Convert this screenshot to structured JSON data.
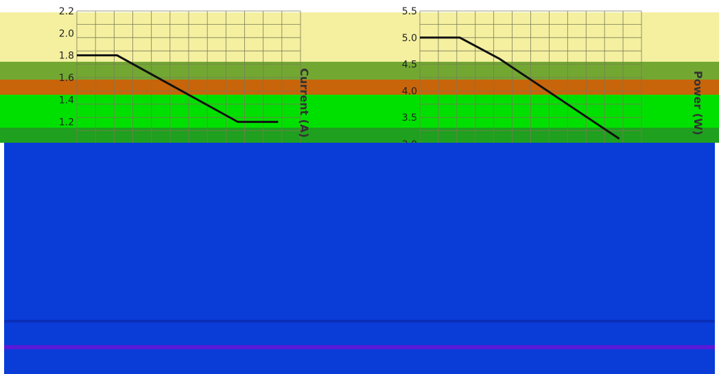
{
  "chart_data": [
    {
      "type": "line",
      "title": "",
      "ylabel": "Current (A)",
      "xlabel": "",
      "ylim": [
        1.0,
        2.2
      ],
      "y_ticks": [
        "2.2",
        "2.0",
        "1.8",
        "1.6",
        "1.4",
        "1.2"
      ],
      "grid": true,
      "series": [
        {
          "x": [
            0,
            1,
            2,
            3,
            4,
            5
          ],
          "values": [
            1.8,
            1.8,
            1.6,
            1.4,
            1.2,
            1.2
          ]
        }
      ]
    },
    {
      "type": "line",
      "title": "",
      "ylabel": "Power (W)",
      "xlabel": "",
      "ylim": [
        3.0,
        5.5
      ],
      "y_ticks": [
        "5.5",
        "5.0",
        "4.5",
        "4.0",
        "3.5",
        "3.0"
      ],
      "grid": true,
      "series": [
        {
          "x": [
            0,
            1,
            2,
            3,
            4,
            5
          ],
          "values": [
            5.0,
            5.0,
            4.6,
            4.1,
            3.6,
            3.1
          ]
        }
      ]
    }
  ],
  "colors": {
    "line": "#111111",
    "grid": "#7a7a55",
    "band_yellow": "#f4f0a0",
    "band_olive": "#72a832",
    "band_orange": "#c8640a",
    "band_green": "#00e000",
    "band_dark_green": "#1fa01f",
    "overlay_blue": "#0a3cd8",
    "overlay_blue_dark": "#0a2fb8",
    "overlay_purple": "#5a1ad8"
  }
}
